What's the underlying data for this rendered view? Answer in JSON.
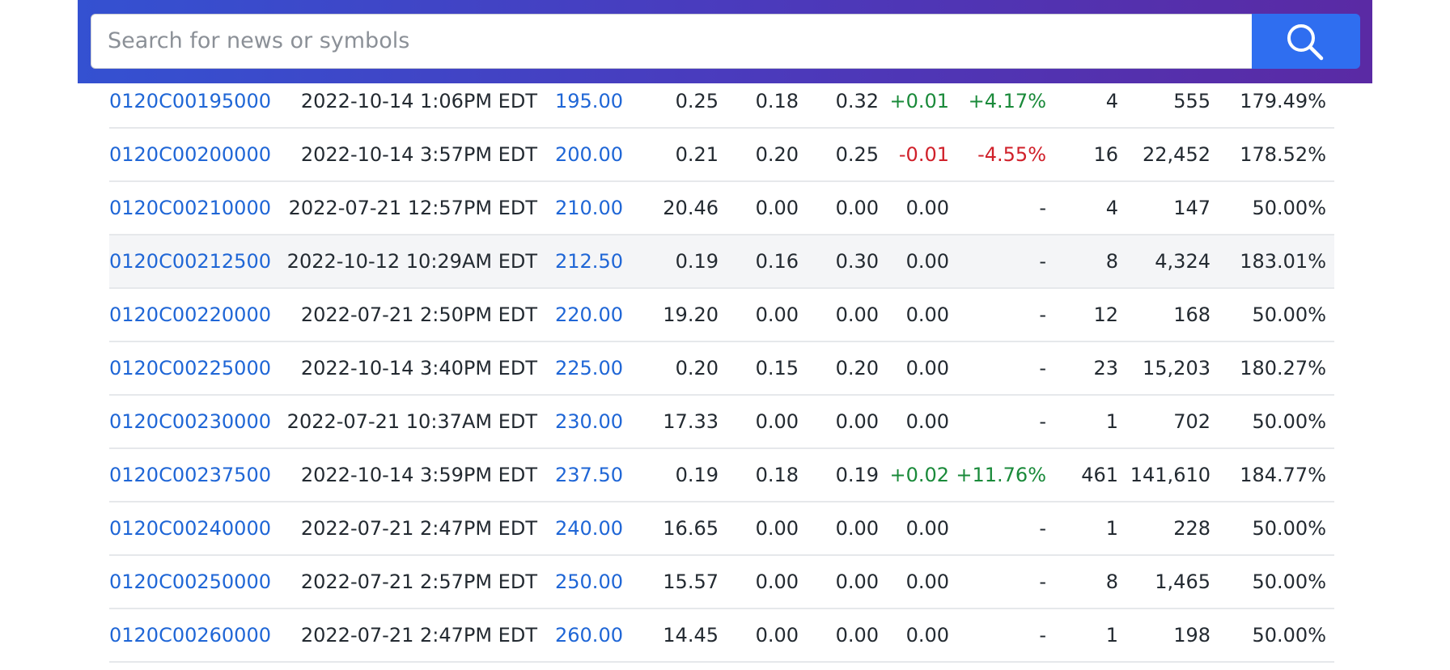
{
  "search": {
    "placeholder": "Search for news or symbols"
  },
  "table": {
    "rows": [
      [
        "0120C00195000",
        "2022-10-14 1:06PM EDT",
        "195.00",
        "0.25",
        "0.18",
        "0.32",
        "+0.01",
        "+4.17%",
        "4",
        "555",
        "179.49%"
      ],
      [
        "0120C00200000",
        "2022-10-14 3:57PM EDT",
        "200.00",
        "0.21",
        "0.20",
        "0.25",
        "-0.01",
        "-4.55%",
        "16",
        "22,452",
        "178.52%"
      ],
      [
        "0120C00210000",
        "2022-07-21 12:57PM EDT",
        "210.00",
        "20.46",
        "0.00",
        "0.00",
        "0.00",
        "-",
        "4",
        "147",
        "50.00%"
      ],
      [
        "0120C00212500",
        "2022-10-12 10:29AM EDT",
        "212.50",
        "0.19",
        "0.16",
        "0.30",
        "0.00",
        "-",
        "8",
        "4,324",
        "183.01%"
      ],
      [
        "0120C00220000",
        "2022-07-21 2:50PM EDT",
        "220.00",
        "19.20",
        "0.00",
        "0.00",
        "0.00",
        "-",
        "12",
        "168",
        "50.00%"
      ],
      [
        "0120C00225000",
        "2022-10-14 3:40PM EDT",
        "225.00",
        "0.20",
        "0.15",
        "0.20",
        "0.00",
        "-",
        "23",
        "15,203",
        "180.27%"
      ],
      [
        "0120C00230000",
        "2022-07-21 10:37AM EDT",
        "230.00",
        "17.33",
        "0.00",
        "0.00",
        "0.00",
        "-",
        "1",
        "702",
        "50.00%"
      ],
      [
        "0120C00237500",
        "2022-10-14 3:59PM EDT",
        "237.50",
        "0.19",
        "0.18",
        "0.19",
        "+0.02",
        "+11.76%",
        "461",
        "141,610",
        "184.77%"
      ],
      [
        "0120C00240000",
        "2022-07-21 2:47PM EDT",
        "240.00",
        "16.65",
        "0.00",
        "0.00",
        "0.00",
        "-",
        "1",
        "228",
        "50.00%"
      ],
      [
        "0120C00250000",
        "2022-07-21 2:57PM EDT",
        "250.00",
        "15.57",
        "0.00",
        "0.00",
        "0.00",
        "-",
        "8",
        "1,465",
        "50.00%"
      ],
      [
        "0120C00260000",
        "2022-07-21 2:47PM EDT",
        "260.00",
        "14.45",
        "0.00",
        "0.00",
        "0.00",
        "-",
        "1",
        "198",
        "50.00%"
      ]
    ]
  }
}
